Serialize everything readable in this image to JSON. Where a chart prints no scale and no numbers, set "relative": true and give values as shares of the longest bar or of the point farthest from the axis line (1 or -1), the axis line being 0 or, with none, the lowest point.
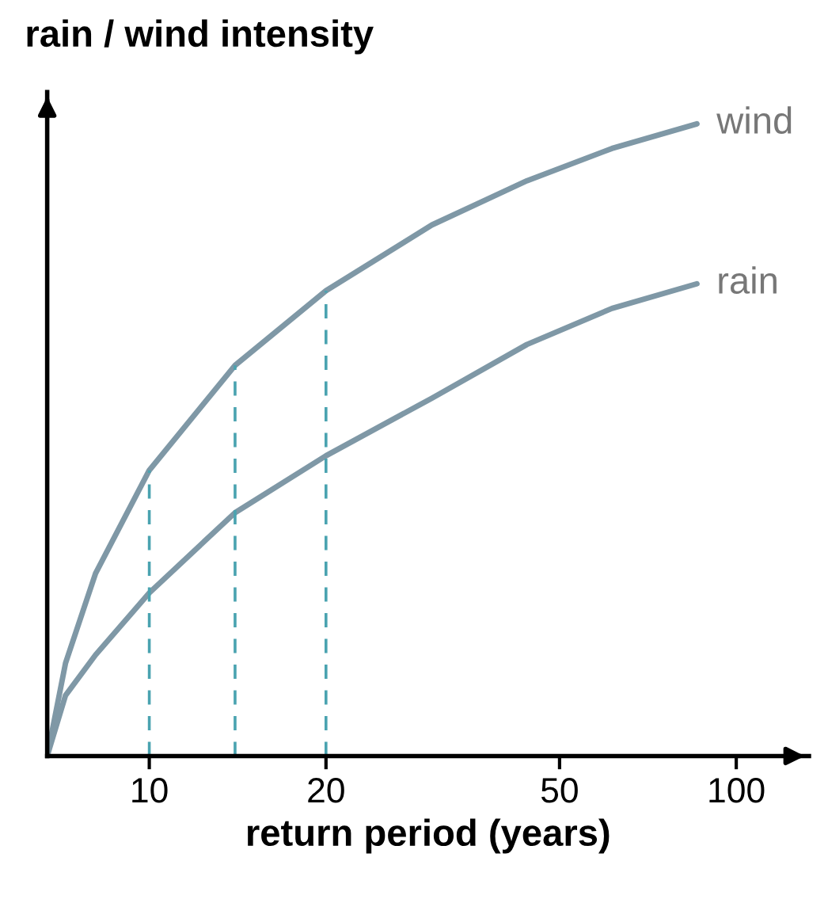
{
  "chart_data": {
    "type": "line",
    "ylabel": "rain / wind intensity",
    "xlabel": "return period (years)",
    "relative": true,
    "log": "x",
    "xlim": [
      6.7,
      133
    ],
    "xticks": [
      10,
      20,
      50,
      100
    ],
    "grid": false,
    "legend": false,
    "marker": "none",
    "line_style": "solid",
    "series": [
      {
        "name": "wind",
        "color": "#7f98a6",
        "x": [
          6.7,
          7.2,
          8.1,
          10,
          14,
          20,
          30.3,
          44,
          61.4,
          85.7
        ],
        "values": [
          0,
          0.147,
          0.289,
          0.452,
          0.618,
          0.736,
          0.84,
          0.91,
          0.961,
          1.0
        ]
      },
      {
        "name": "rain",
        "color": "#7f98a6",
        "x": [
          6.7,
          7.2,
          8.1,
          10,
          14,
          20,
          30.3,
          44,
          61.4,
          85.7
        ],
        "values": [
          0,
          0.096,
          0.16,
          0.258,
          0.385,
          0.475,
          0.566,
          0.651,
          0.708,
          0.747
        ]
      },
      {
        "color": "#4aa3b0",
        "line_style": "dashed",
        "x": [
          10,
          10
        ],
        "values": [
          0,
          0.452
        ]
      },
      {
        "color": "#4aa3b0",
        "line_style": "dashed",
        "x": [
          14,
          14
        ],
        "values": [
          0,
          0.618
        ]
      },
      {
        "color": "#4aa3b0",
        "line_style": "dashed",
        "x": [
          20,
          20
        ],
        "values": [
          0,
          0.736
        ]
      }
    ]
  }
}
